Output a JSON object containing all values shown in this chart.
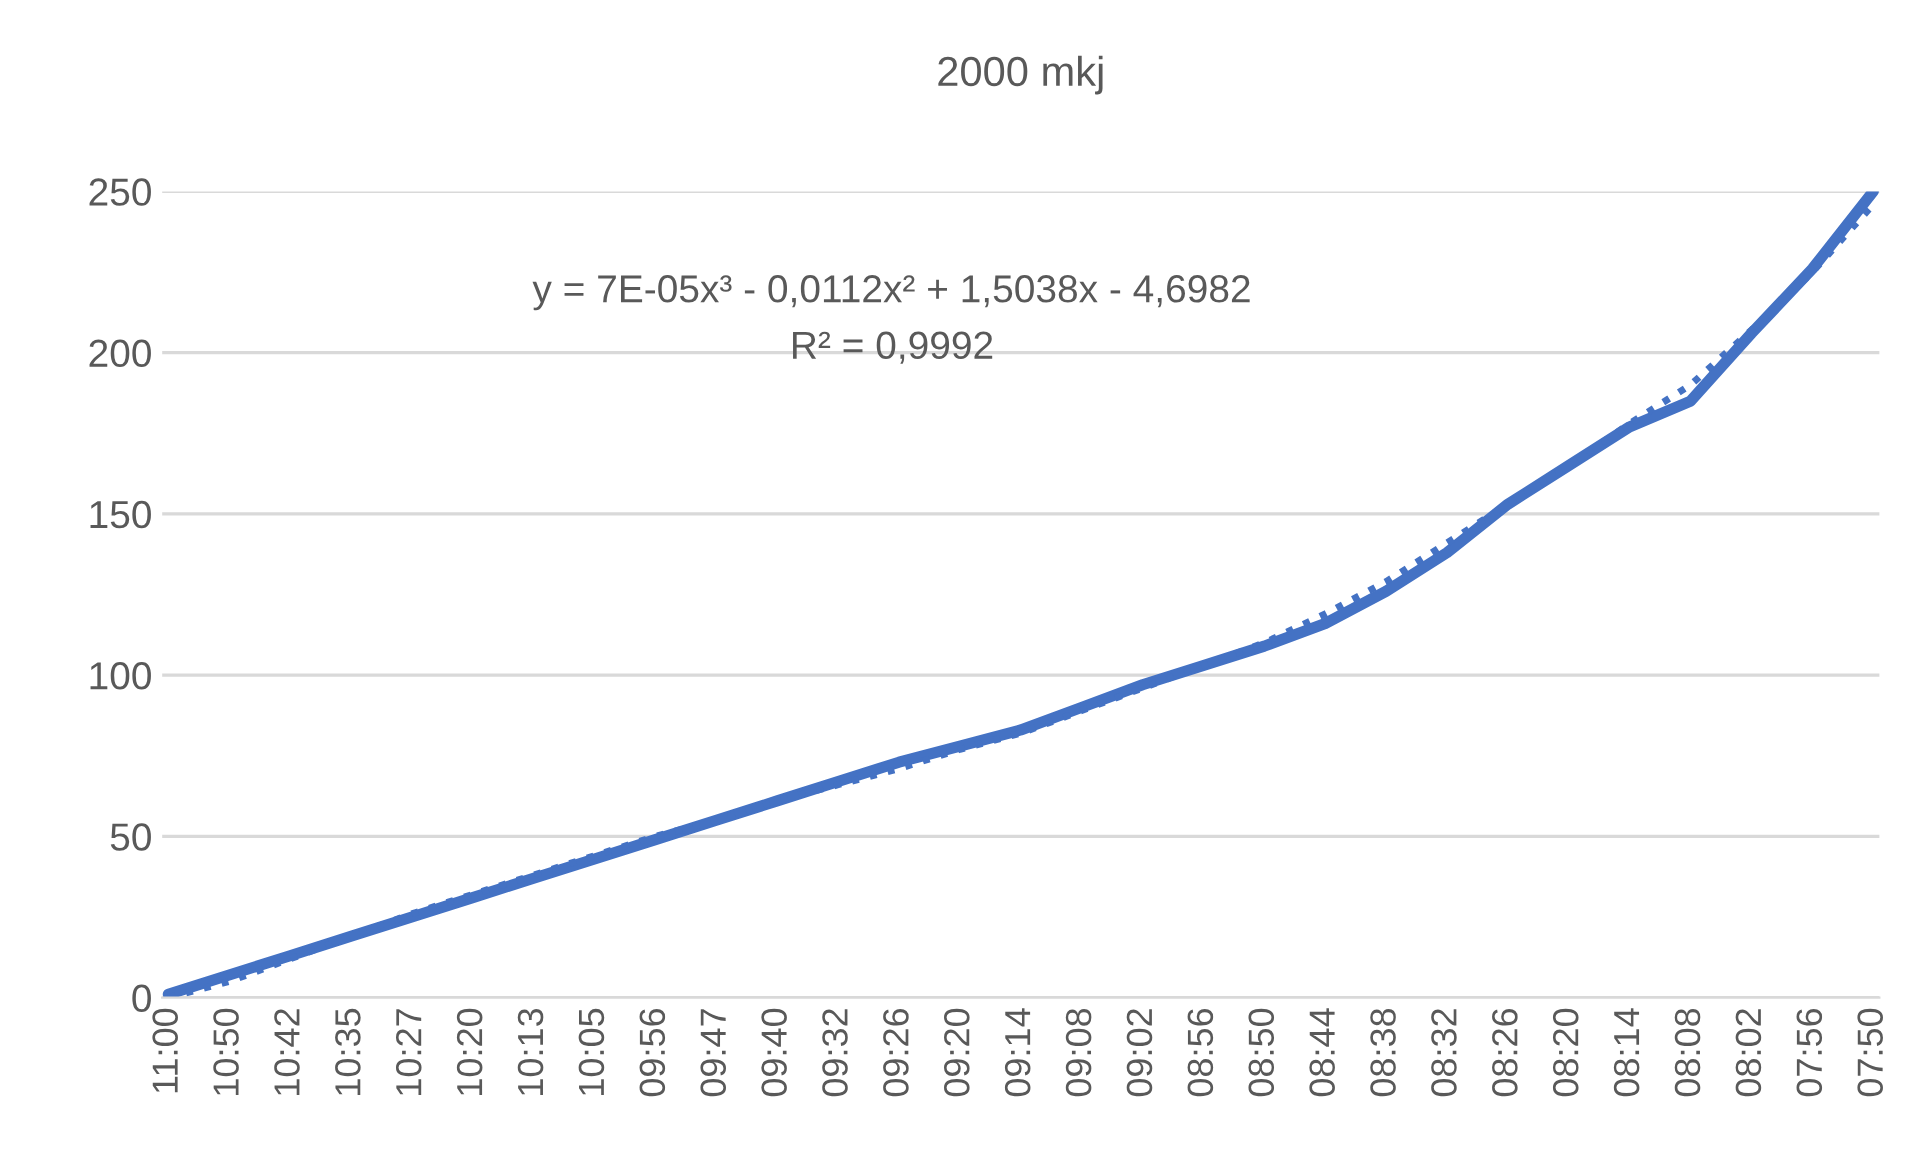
{
  "chart_data": {
    "type": "line",
    "title": "2000 mkj",
    "categories": [
      "11:00",
      "10:50",
      "10:42",
      "10:35",
      "10:27",
      "10:20",
      "10:13",
      "10:05",
      "09:56",
      "09:47",
      "09:40",
      "09:32",
      "09:26",
      "09:20",
      "09:14",
      "09:08",
      "09:02",
      "08:56",
      "08:50",
      "08:44",
      "08:38",
      "08:32",
      "08:26",
      "08:20",
      "08:14",
      "08:08",
      "08:02",
      "07:56",
      "07:50"
    ],
    "series": [
      {
        "color": "#4472c4",
        "line_style": "solid",
        "values": [
          1,
          7,
          13,
          19,
          25,
          31,
          37,
          43,
          49,
          55,
          61,
          67,
          73,
          78,
          83,
          90,
          97,
          103,
          109,
          116,
          126,
          138,
          153,
          165,
          177,
          185,
          206,
          226,
          250
        ]
      },
      {
        "color": "#4472c4",
        "line_style": "dotted",
        "values": [
          0,
          5,
          12,
          19,
          26,
          32,
          38,
          44,
          50,
          55,
          61,
          66,
          71,
          77,
          82,
          89,
          96,
          103,
          110,
          119,
          129,
          141,
          153,
          165,
          178,
          190,
          207,
          225,
          246
        ]
      }
    ],
    "annotations": [
      "y = 7E-05x³ - 0,0112x² + 1,5038x - 4,6982",
      "R² = 0,9992"
    ],
    "ylim": [
      0,
      250
    ],
    "yticks": [
      0,
      50,
      100,
      150,
      200,
      250
    ],
    "grid": "y",
    "legend": false
  }
}
